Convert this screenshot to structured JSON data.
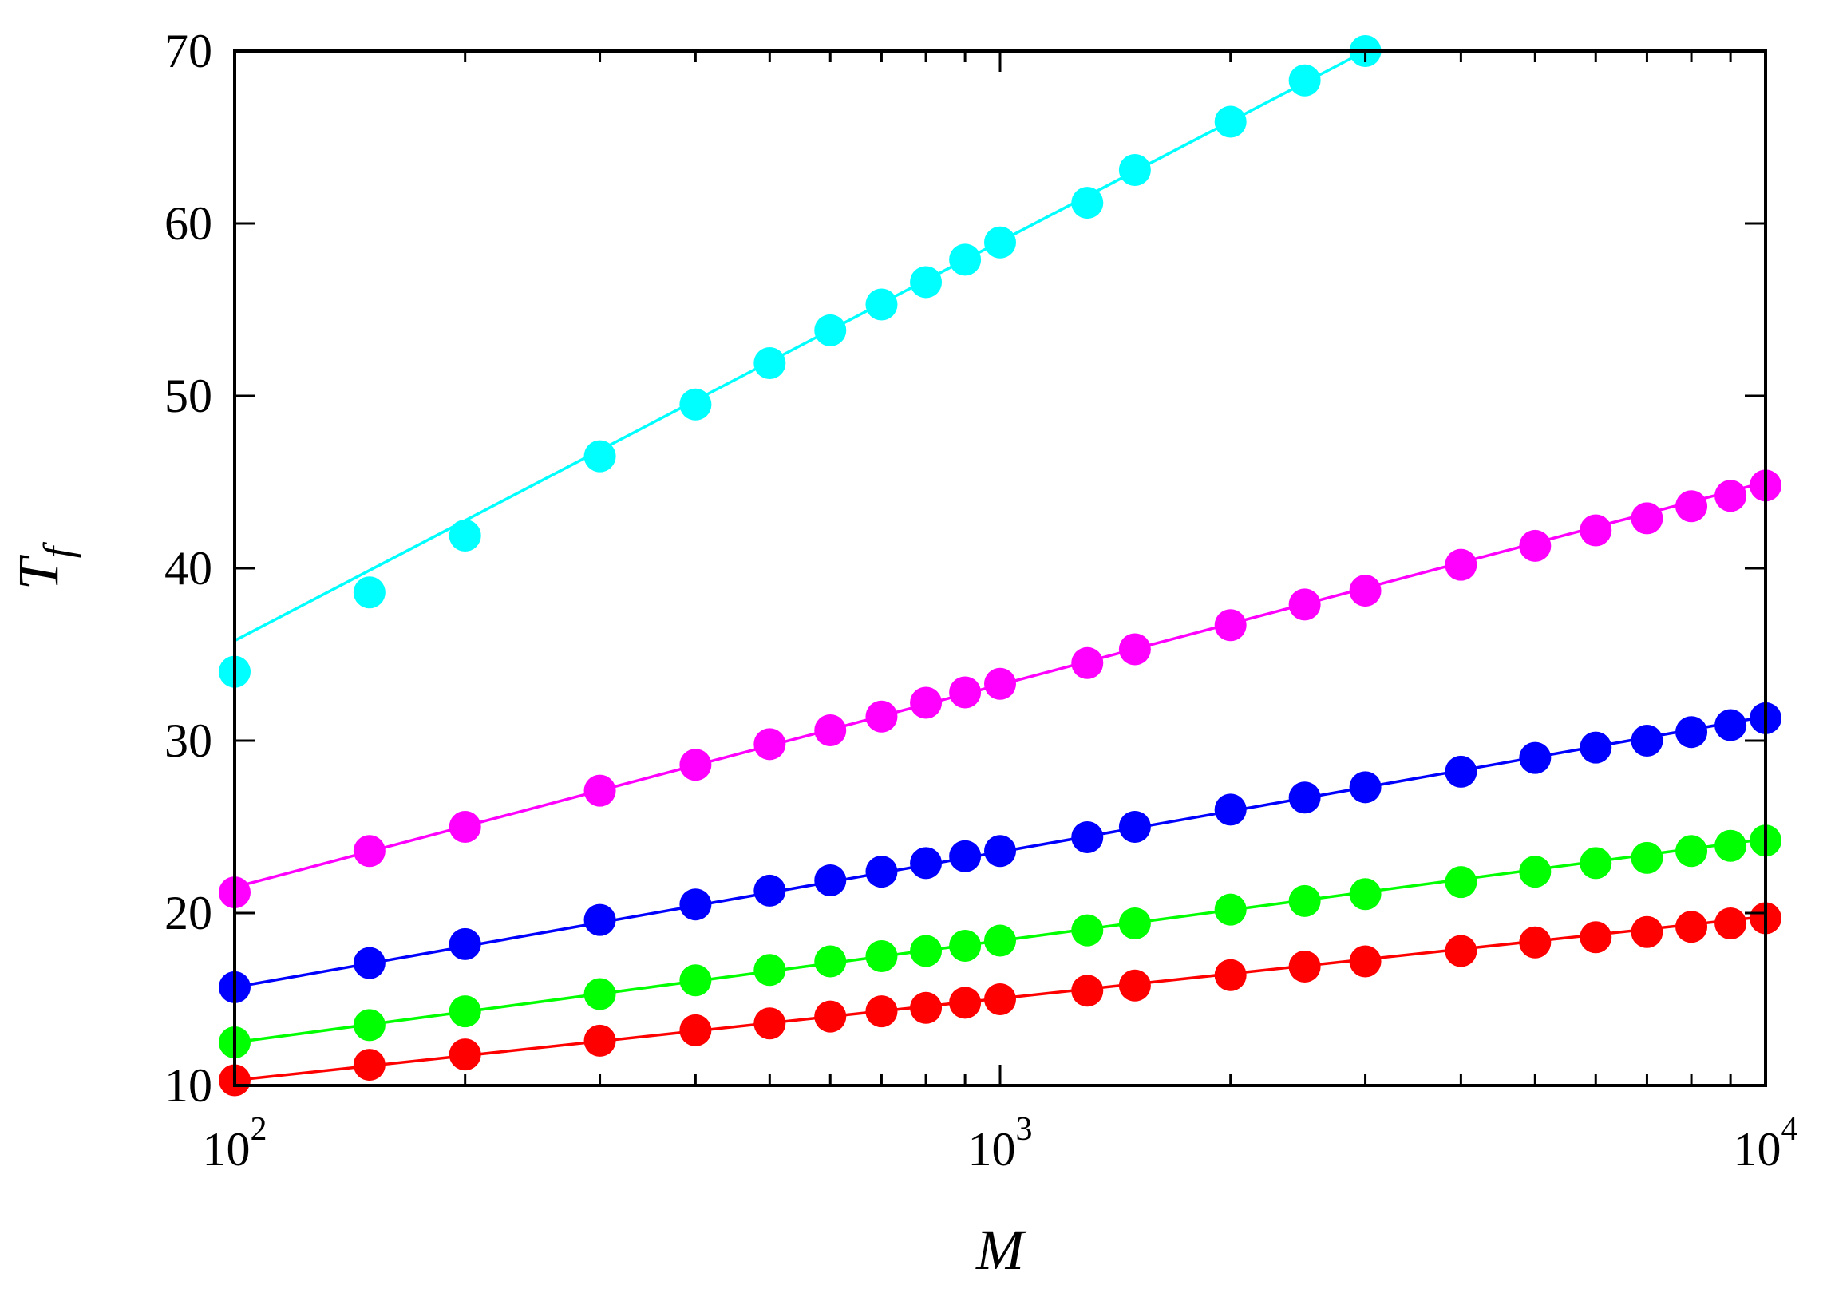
{
  "chart_data": {
    "type": "scatter",
    "title": "",
    "xlabel": "M",
    "ylabel": "T",
    "ylabel_sub": "f",
    "xscale": "log",
    "xlim": [
      100,
      10000
    ],
    "ylim": [
      10,
      70
    ],
    "x_ticks": [
      {
        "value": 100,
        "base": "10",
        "exp": "2"
      },
      {
        "value": 1000,
        "base": "10",
        "exp": "3"
      },
      {
        "value": 10000,
        "base": "10",
        "exp": "4"
      }
    ],
    "y_ticks": [
      10,
      20,
      30,
      40,
      50,
      60,
      70
    ],
    "x": [
      100,
      150,
      200,
      300,
      400,
      500,
      600,
      700,
      800,
      900,
      1000,
      1300,
      1500,
      2000,
      2500,
      3000,
      4000,
      5000,
      6000,
      7000,
      8000,
      9000,
      10000
    ],
    "series": [
      {
        "name": "cyan",
        "color": "#00ffff",
        "values": [
          34.0,
          38.6,
          41.9,
          46.5,
          49.5,
          51.9,
          53.8,
          55.3,
          56.6,
          57.9,
          58.9,
          61.2,
          63.1,
          65.9,
          68.3,
          70.0
        ],
        "fit": [
          100,
          35.8,
          3000,
          70.0
        ]
      },
      {
        "name": "magenta",
        "color": "#ff00ff",
        "values": [
          21.2,
          23.6,
          25.0,
          27.1,
          28.6,
          29.8,
          30.6,
          31.4,
          32.2,
          32.8,
          33.3,
          34.5,
          35.3,
          36.7,
          37.9,
          38.7,
          40.2,
          41.3,
          42.2,
          42.9,
          43.6,
          44.2,
          44.8
        ],
        "fit": [
          100,
          21.5,
          10000,
          45.0
        ]
      },
      {
        "name": "blue",
        "color": "#0000ff",
        "values": [
          15.7,
          17.1,
          18.2,
          19.6,
          20.5,
          21.3,
          21.9,
          22.4,
          22.9,
          23.3,
          23.6,
          24.4,
          25.0,
          26.0,
          26.7,
          27.3,
          28.2,
          29.0,
          29.6,
          30.0,
          30.5,
          30.9,
          31.3
        ],
        "fit": [
          100,
          15.7,
          10000,
          31.4
        ]
      },
      {
        "name": "green",
        "color": "#00ff00",
        "values": [
          12.5,
          13.5,
          14.3,
          15.3,
          16.1,
          16.7,
          17.2,
          17.5,
          17.8,
          18.1,
          18.4,
          19.0,
          19.4,
          20.2,
          20.7,
          21.1,
          21.8,
          22.4,
          22.9,
          23.2,
          23.6,
          23.9,
          24.2
        ],
        "fit": [
          100,
          12.5,
          10000,
          24.3
        ]
      },
      {
        "name": "red",
        "color": "#ff0000",
        "values": [
          10.3,
          11.2,
          11.8,
          12.6,
          13.2,
          13.6,
          14.0,
          14.3,
          14.5,
          14.8,
          15.0,
          15.5,
          15.8,
          16.4,
          16.9,
          17.2,
          17.8,
          18.3,
          18.6,
          18.9,
          19.2,
          19.4,
          19.7
        ],
        "fit": [
          100,
          10.3,
          10000,
          19.8
        ]
      }
    ]
  }
}
